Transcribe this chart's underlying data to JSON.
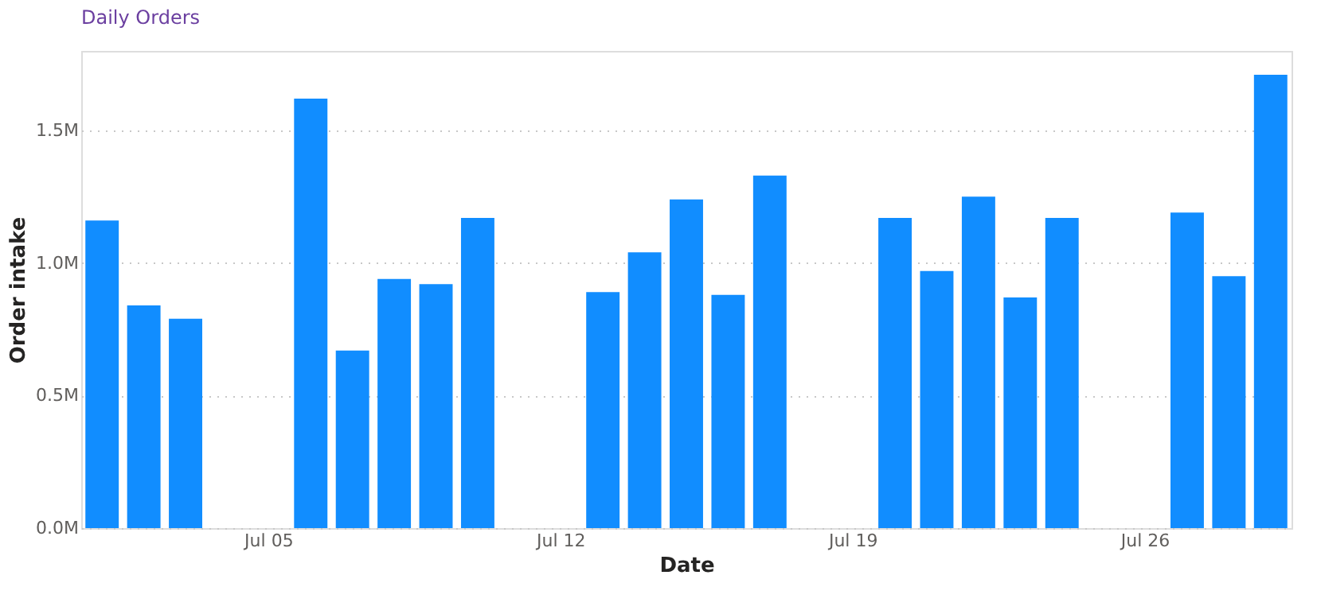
{
  "chart_data": {
    "type": "bar",
    "title": "Daily Orders",
    "xlabel": "Date",
    "ylabel": "Order intake",
    "categories": [
      null,
      null,
      null,
      null,
      "Jul 05",
      null,
      null,
      null,
      null,
      null,
      null,
      "Jul 12",
      null,
      null,
      null,
      null,
      null,
      null,
      "Jul 19",
      null,
      null,
      null,
      null,
      null,
      null,
      "Jul 26",
      null,
      null,
      null
    ],
    "values": [
      1.16,
      0.84,
      0.79,
      null,
      null,
      1.62,
      0.67,
      0.94,
      0.92,
      1.17,
      null,
      null,
      0.89,
      1.04,
      1.24,
      0.88,
      1.33,
      null,
      null,
      1.17,
      0.97,
      1.25,
      0.87,
      1.17,
      null,
      null,
      1.19,
      0.95,
      1.71
    ],
    "color": "#118dff",
    "ylim": [
      0,
      1.8
    ],
    "yticks": [
      {
        "value": 0,
        "label": "0.0M"
      },
      {
        "value": 0.5,
        "label": "0.5M"
      },
      {
        "value": 1.0,
        "label": "1.0M"
      },
      {
        "value": 1.5,
        "label": "1.5M"
      }
    ],
    "grid": "y"
  }
}
